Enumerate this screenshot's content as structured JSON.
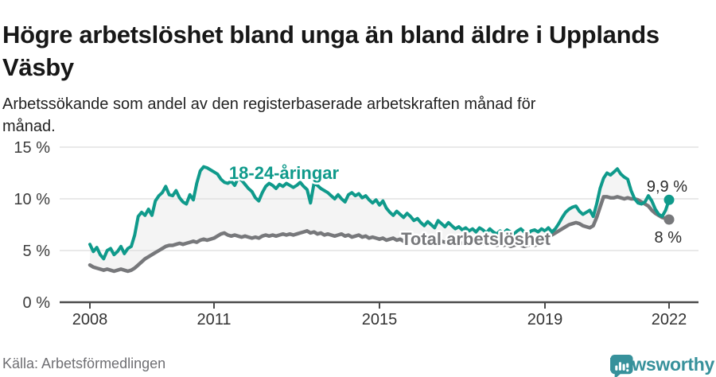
{
  "header": {
    "title": "Högre arbetslöshet bland unga än bland äldre i Upplands Väsby",
    "subtitle": "Arbetssökande som andel av den registerbaserade arbetskraften månad för månad."
  },
  "footer": {
    "source": "Källa: Arbetsförmedlingen",
    "brand_name": "Newsworthy",
    "brand_icon": "bar-chart-speech-bubble-icon"
  },
  "colors": {
    "young_line": "#0f9a8b",
    "total_line": "#77787b",
    "band_fill": "#f4f4f4",
    "gridline": "#dcdcdc",
    "axis": "#4b4b4b",
    "brand_teal": "#37919b",
    "label_text": "#2b2b2b"
  },
  "chart_data": {
    "type": "line",
    "title": "Högre arbetslöshet bland unga än bland äldre i Upplands Väsby",
    "subtitle": "Arbetssökande som andel av den registerbaserade arbetskraften månad för månad.",
    "x_unit": "month",
    "x_start": "2008-01",
    "x_end": "2022-01",
    "x_ticks": [
      2008,
      2011,
      2015,
      2019,
      2022
    ],
    "y_tick_values": [
      0,
      5,
      10,
      15
    ],
    "y_tick_labels": [
      "0 %",
      "5 %",
      "10 %",
      "15 %"
    ],
    "ylim": [
      0,
      15.5
    ],
    "grid": "horizontal",
    "legend_position": "inline-labels",
    "area_between_series": true,
    "series": [
      {
        "name": "18-24-åringar",
        "color": "#0f9a8b",
        "end_label": "9,9 %",
        "end_value": 9.9,
        "values": [
          5.6,
          4.9,
          5.3,
          4.6,
          4.2,
          5.0,
          5.2,
          4.6,
          4.9,
          5.4,
          4.7,
          5.2,
          5.4,
          6.5,
          8.3,
          8.7,
          8.4,
          9.0,
          8.4,
          9.8,
          10.3,
          10.6,
          11.2,
          10.4,
          10.3,
          10.8,
          10.1,
          9.7,
          9.5,
          10.4,
          9.9,
          11.5,
          12.7,
          13.1,
          13.0,
          12.8,
          12.6,
          12.4,
          11.9,
          11.6,
          11.5,
          11.7,
          11.3,
          12.0,
          11.8,
          11.4,
          11.0,
          10.7,
          10.1,
          9.8,
          10.6,
          11.2,
          11.5,
          11.3,
          11.0,
          11.4,
          11.2,
          11.5,
          11.3,
          11.1,
          11.3,
          11.6,
          11.2,
          10.9,
          9.6,
          11.5,
          11.3,
          11.0,
          10.8,
          10.6,
          10.3,
          10.0,
          10.4,
          10.0,
          9.7,
          10.4,
          10.6,
          10.3,
          10.5,
          10.1,
          10.3,
          9.9,
          9.6,
          9.9,
          9.4,
          9.8,
          9.1,
          8.7,
          8.4,
          8.8,
          8.5,
          8.2,
          8.6,
          8.3,
          7.9,
          8.1,
          7.7,
          7.4,
          7.8,
          7.5,
          7.2,
          7.9,
          7.6,
          7.3,
          7.7,
          7.4,
          7.1,
          7.3,
          7.0,
          7.2,
          6.9,
          7.1,
          6.8,
          7.2,
          7.0,
          6.7,
          7.1,
          6.8,
          6.6,
          6.9,
          6.7,
          7.0,
          6.8,
          6.6,
          6.9,
          7.1,
          6.8,
          6.6,
          6.9,
          7.0,
          6.8,
          7.1,
          6.9,
          7.2,
          6.8,
          7.1,
          7.6,
          8.2,
          8.7,
          9.0,
          9.2,
          9.3,
          8.8,
          8.5,
          8.7,
          8.9,
          8.3,
          9.5,
          11.0,
          12.0,
          12.5,
          12.3,
          12.6,
          12.9,
          12.4,
          12.1,
          11.9,
          10.8,
          10.0,
          9.6,
          9.5,
          9.7,
          10.3,
          9.8,
          9.0,
          8.5,
          8.3,
          8.9,
          9.9
        ]
      },
      {
        "name": "Total arbetslöshet",
        "color": "#77787b",
        "end_label": "8 %",
        "end_value": 8.0,
        "values": [
          3.6,
          3.4,
          3.3,
          3.2,
          3.1,
          3.2,
          3.1,
          3.0,
          3.1,
          3.2,
          3.1,
          3.0,
          3.1,
          3.3,
          3.6,
          3.9,
          4.2,
          4.4,
          4.6,
          4.8,
          5.0,
          5.2,
          5.4,
          5.5,
          5.5,
          5.6,
          5.7,
          5.6,
          5.7,
          5.8,
          5.9,
          5.8,
          6.0,
          6.1,
          6.0,
          6.1,
          6.2,
          6.4,
          6.6,
          6.7,
          6.5,
          6.4,
          6.5,
          6.4,
          6.3,
          6.4,
          6.3,
          6.2,
          6.3,
          6.2,
          6.4,
          6.5,
          6.4,
          6.5,
          6.4,
          6.5,
          6.6,
          6.5,
          6.6,
          6.5,
          6.6,
          6.7,
          6.8,
          6.9,
          6.7,
          6.8,
          6.6,
          6.7,
          6.5,
          6.6,
          6.5,
          6.4,
          6.5,
          6.6,
          6.4,
          6.5,
          6.3,
          6.4,
          6.5,
          6.3,
          6.4,
          6.2,
          6.3,
          6.2,
          6.1,
          6.2,
          6.0,
          6.1,
          6.2,
          6.0,
          6.1,
          5.9,
          6.0,
          6.1,
          5.9,
          6.0,
          5.9,
          6.0,
          5.8,
          5.9,
          6.0,
          5.8,
          5.9,
          5.8,
          5.9,
          5.8,
          5.7,
          5.8,
          5.7,
          5.8,
          5.6,
          5.7,
          5.8,
          5.6,
          5.7,
          5.6,
          5.7,
          5.6,
          5.5,
          5.6,
          5.5,
          5.6,
          5.4,
          5.5,
          5.6,
          5.5,
          5.4,
          5.5,
          5.6,
          5.5,
          5.6,
          5.7,
          6.2,
          6.4,
          6.5,
          6.7,
          6.9,
          7.1,
          7.3,
          7.5,
          7.6,
          7.7,
          7.6,
          7.4,
          7.3,
          7.2,
          7.4,
          8.2,
          9.2,
          10.2,
          10.2,
          10.1,
          10.1,
          10.2,
          10.1,
          10.0,
          10.1,
          10.0,
          10.0,
          9.9,
          9.7,
          9.5,
          9.3,
          8.9,
          8.6,
          8.4,
          8.2,
          8.1,
          8.0
        ]
      }
    ]
  }
}
